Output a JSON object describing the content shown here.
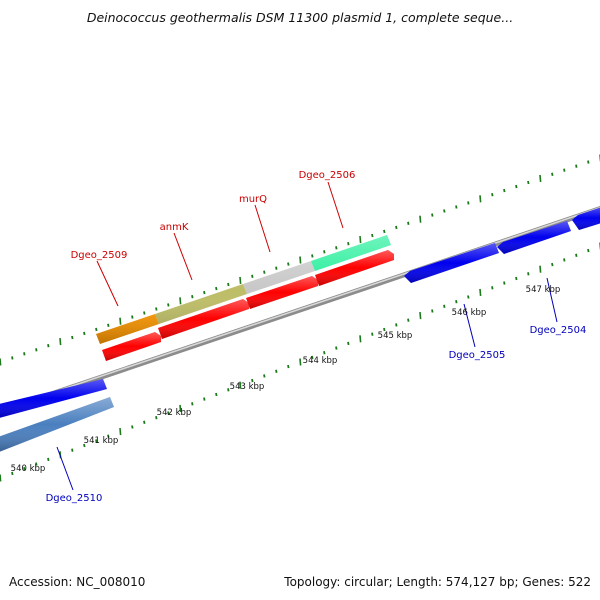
{
  "title": "Deinococcus geothermalis DSM 11300 plasmid 1, complete seque...",
  "footer": {
    "accession": "Accession: NC_008010",
    "summary": "Topology: circular; Length: 574,127 bp; Genes: 522"
  },
  "colors": {
    "backbone": "#8c8c8c",
    "tick": "#1c7a1c",
    "forward_label": "#cc0000",
    "reverse_label": "#0000bb"
  },
  "scale_labels": [
    "540 kbp",
    "541 kbp",
    "542 kbp",
    "543 kbp",
    "544 kbp",
    "545 kbp",
    "546 kbp",
    "547 kbp"
  ],
  "gene_labels": [
    {
      "text": "Dgeo_2509",
      "strand": "forward"
    },
    {
      "text": "anmK",
      "strand": "forward"
    },
    {
      "text": "murQ",
      "strand": "forward"
    },
    {
      "text": "Dgeo_2506",
      "strand": "forward"
    },
    {
      "text": "Dgeo_2510",
      "strand": "reverse"
    },
    {
      "text": "Dgeo_2505",
      "strand": "reverse"
    },
    {
      "text": "Dgeo_2504",
      "strand": "reverse"
    }
  ]
}
